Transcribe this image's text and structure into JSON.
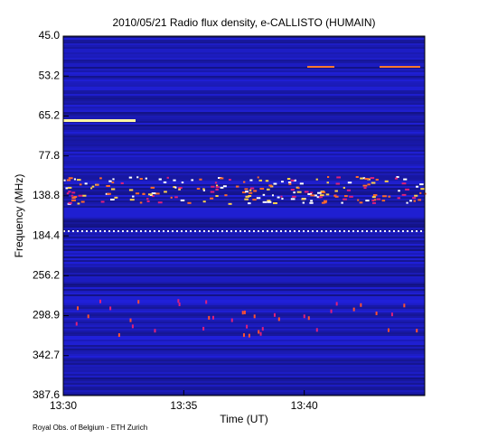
{
  "chart_data": {
    "type": "spectrogram",
    "title": "2010/05/21  Radio flux density, e-CALLISTO (HUMAIN)",
    "xlabel": "Time (UT)",
    "ylabel": "Frequency (MHz)",
    "footer": "Royal Obs. of Belgium - ETH Zurich",
    "xlim": [
      810,
      825
    ],
    "xticks": [
      {
        "value": 810,
        "label": "13:30"
      },
      {
        "value": 815,
        "label": "13:35"
      },
      {
        "value": 820,
        "label": "13:40"
      }
    ],
    "yscale": "channel",
    "yticks": [
      {
        "value": 45,
        "label": "45.0"
      },
      {
        "value": 53.2,
        "label": "53.2"
      },
      {
        "value": 65.2,
        "label": "65.2"
      },
      {
        "value": 77.8,
        "label": "77.8"
      },
      {
        "value": 138.8,
        "label": "138.8"
      },
      {
        "value": 184.4,
        "label": "184.4"
      },
      {
        "value": 256.2,
        "label": "256.2"
      },
      {
        "value": 298.9,
        "label": "298.9"
      },
      {
        "value": 342.7,
        "label": "342.7"
      },
      {
        "value": 387.6,
        "label": "387.6"
      }
    ]
  }
}
